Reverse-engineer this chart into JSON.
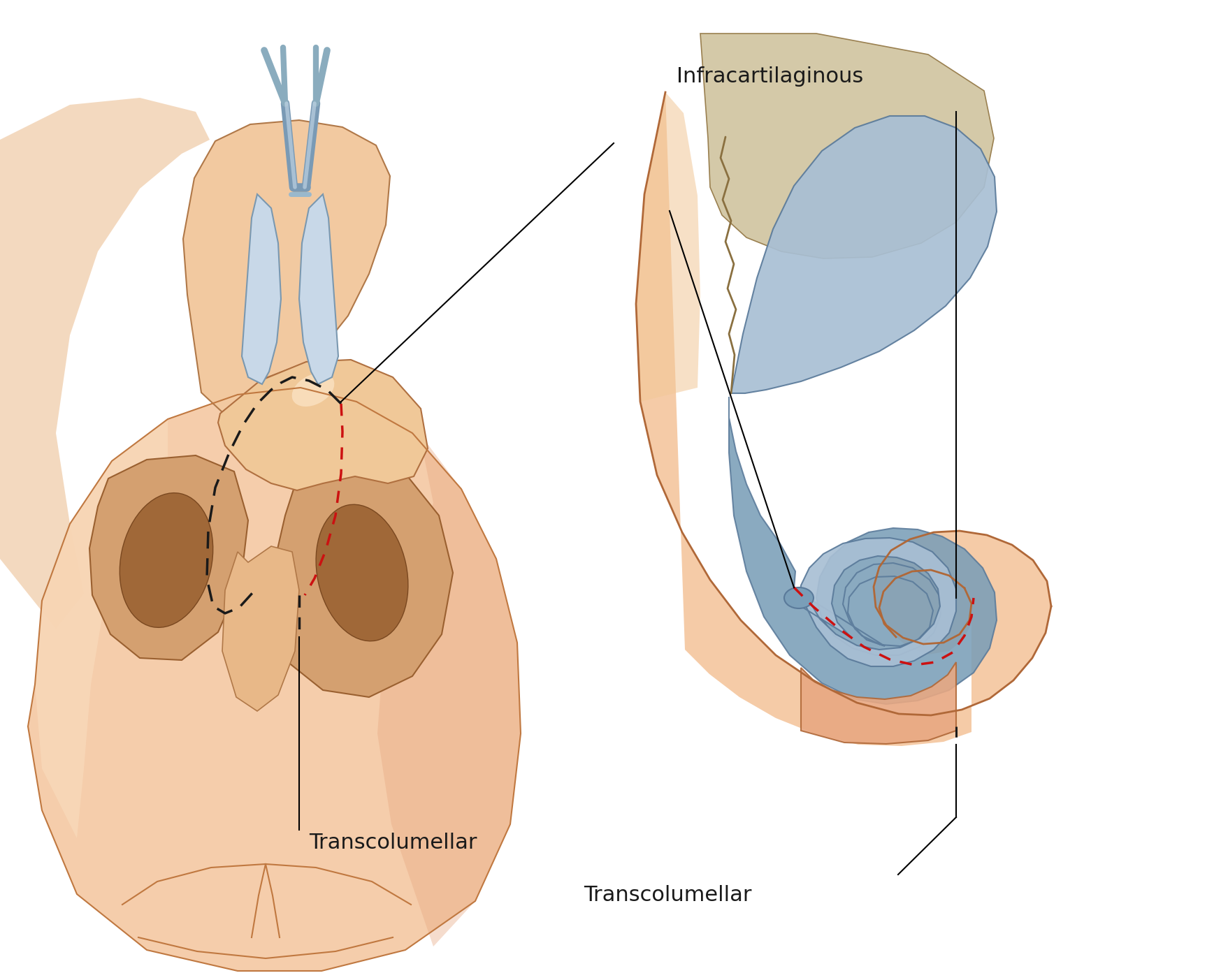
{
  "background_color": "#ffffff",
  "skin_color_light": "#f5cba7",
  "skin_color_mid": "#e8a882",
  "skin_color_dark": "#d4845a",
  "skin_outline": "#8B4513",
  "cartilage_blue_light": "#a8bfd4",
  "cartilage_blue_mid": "#7a9eb8",
  "cartilage_blue_dark": "#5a7a9a",
  "bone_color": "#d4c9a8",
  "red_dashed": "#cc0000",
  "black_dashed": "#1a1a1a",
  "text_color": "#1a1a1a",
  "label_infracartilaginous": "Infracartilaginous",
  "label_transcolumellar": "Transcolumellar",
  "font_size": 22,
  "fig_width": 17.47,
  "fig_height": 14.03
}
